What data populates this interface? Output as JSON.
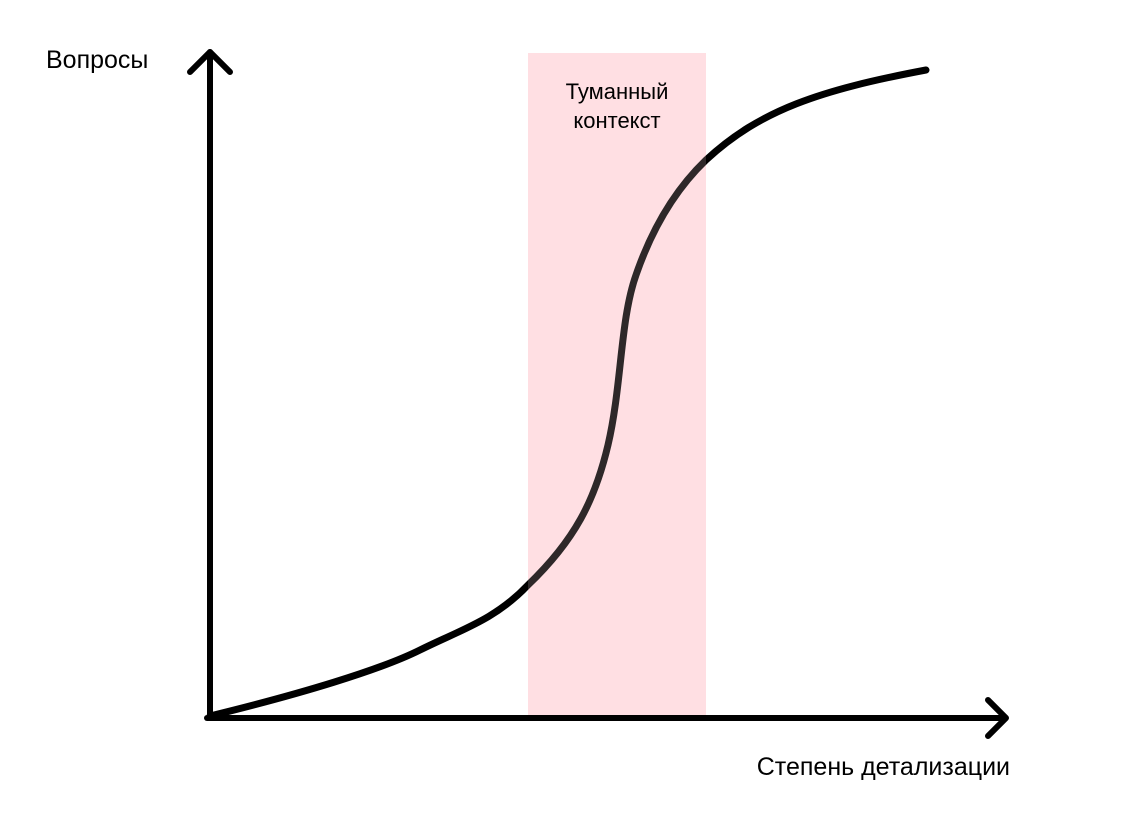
{
  "diagram": {
    "y_axis_label": "Вопросы",
    "x_axis_label": "Степень детализации",
    "zone": {
      "label_line_1": "Туманный",
      "label_line_2": "контекст",
      "fill_color": "#ffe0e3"
    },
    "curve": {
      "stroke_color": "#000000",
      "shape": "s-curve"
    },
    "axis_color": "#000000"
  }
}
